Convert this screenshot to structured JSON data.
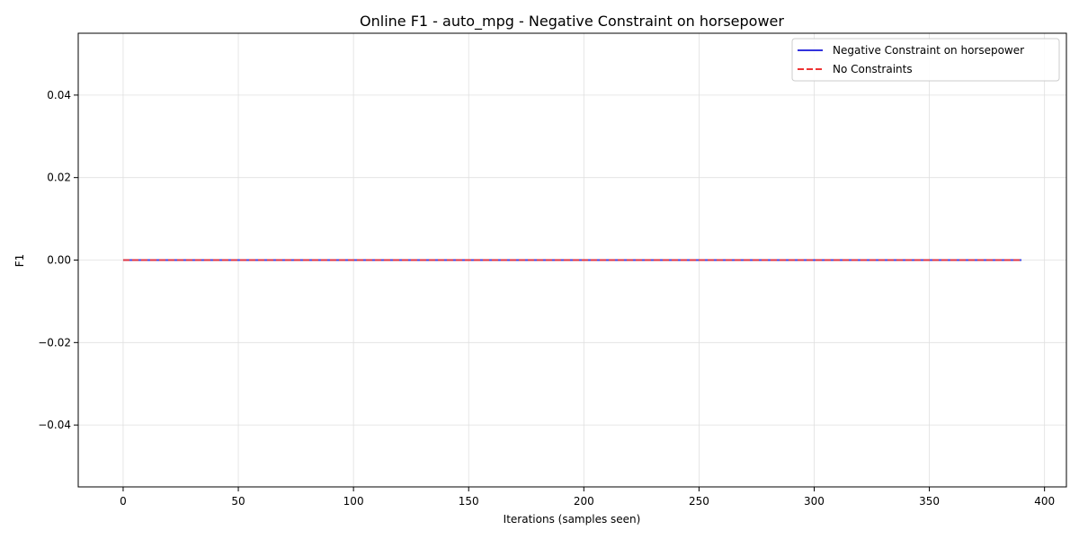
{
  "chart_data": {
    "type": "line",
    "title": "Online F1 - auto_mpg - Negative Constraint on horsepower",
    "xlabel": "Iterations (samples seen)",
    "ylabel": "F1",
    "xlim": [
      -19.5,
      409.5
    ],
    "ylim": [
      -0.055,
      0.055
    ],
    "xticks": [
      0,
      50,
      100,
      150,
      200,
      250,
      300,
      350,
      400
    ],
    "yticks": [
      -0.04,
      -0.02,
      0.0,
      0.02,
      0.04
    ],
    "ytick_labels": [
      "−0.04",
      "−0.02",
      "0.00",
      "0.02",
      "0.04"
    ],
    "grid": true,
    "legend_position": "top-right",
    "series": [
      {
        "name": "Negative Constraint on horsepower",
        "color": "#3333dd",
        "style": "solid",
        "x": [
          0,
          390
        ],
        "y": [
          0.0,
          0.0
        ]
      },
      {
        "name": "No Constraints",
        "color": "#ee3333",
        "style": "dashed",
        "x": [
          0,
          390
        ],
        "y": [
          0.0,
          0.0
        ]
      }
    ]
  }
}
